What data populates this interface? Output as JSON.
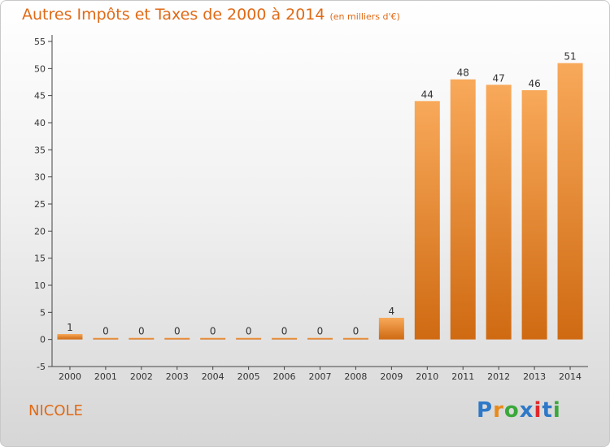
{
  "title": "Autres Impôts et Taxes de 2000 à 2014",
  "unit_note": "(en milliers d'€)",
  "commune": "NICOLE",
  "logo": {
    "text": "Proxiti",
    "colors": [
      "#2e78c8",
      "#e88a1a",
      "#3aa83a",
      "#2e78c8",
      "#e0282a",
      "#2e78c8",
      "#3aa83a"
    ]
  },
  "colors": {
    "bar_top": "#f8a95a",
    "bar_bottom": "#cf6a12",
    "title": "#e06a16"
  },
  "chart_data": {
    "type": "bar",
    "title": "Autres Impôts et Taxes de 2000 à 2014",
    "subtitle": "(en milliers d'€)",
    "categories": [
      "2000",
      "2001",
      "2002",
      "2003",
      "2004",
      "2005",
      "2006",
      "2007",
      "2008",
      "2009",
      "2010",
      "2011",
      "2012",
      "2013",
      "2014"
    ],
    "values": [
      1,
      0,
      0,
      0,
      0,
      0,
      0,
      0,
      0,
      4,
      44,
      48,
      47,
      46,
      51
    ],
    "ylim": [
      -5,
      55
    ],
    "yticks": [
      -5,
      0,
      5,
      10,
      15,
      20,
      25,
      30,
      35,
      40,
      45,
      50,
      55
    ],
    "grid": false,
    "xlabel": "",
    "ylabel": ""
  }
}
